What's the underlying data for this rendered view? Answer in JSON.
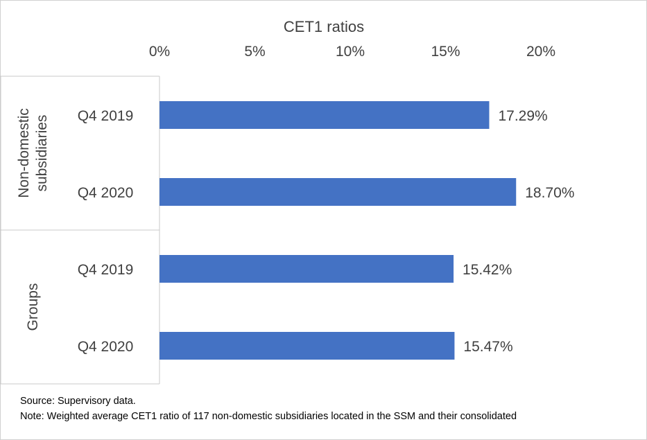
{
  "chart_data": {
    "type": "bar",
    "orientation": "horizontal",
    "title": "CET1 ratios",
    "xlabel": "",
    "ylabel": "",
    "xlim": [
      0,
      20
    ],
    "ticks": [
      0,
      5,
      10,
      15,
      20
    ],
    "tick_labels": [
      "0%",
      "5%",
      "10%",
      "15%",
      "20%"
    ],
    "axis_position": "top",
    "grid": false,
    "bar_color": "#4472C4",
    "groups": [
      {
        "name": "Non-domestic subsidiaries",
        "name_lines": [
          "Non-domestic",
          "subsidiaries"
        ],
        "categories": [
          "Q4 2019",
          "Q4 2020"
        ],
        "values": [
          17.29,
          18.7
        ],
        "data_labels": [
          "17.29%",
          "18.70%"
        ]
      },
      {
        "name": "Groups",
        "name_lines": [
          "Groups"
        ],
        "categories": [
          "Q4 2019",
          "Q4 2020"
        ],
        "values": [
          15.42,
          15.47
        ],
        "data_labels": [
          "15.42%",
          "15.47%"
        ]
      }
    ]
  },
  "footnotes": {
    "source": "Source: Supervisory data.",
    "note": "Note: Weighted average CET1 ratio of 117 non-domestic subsidiaries located in the SSM and their consolidated"
  }
}
